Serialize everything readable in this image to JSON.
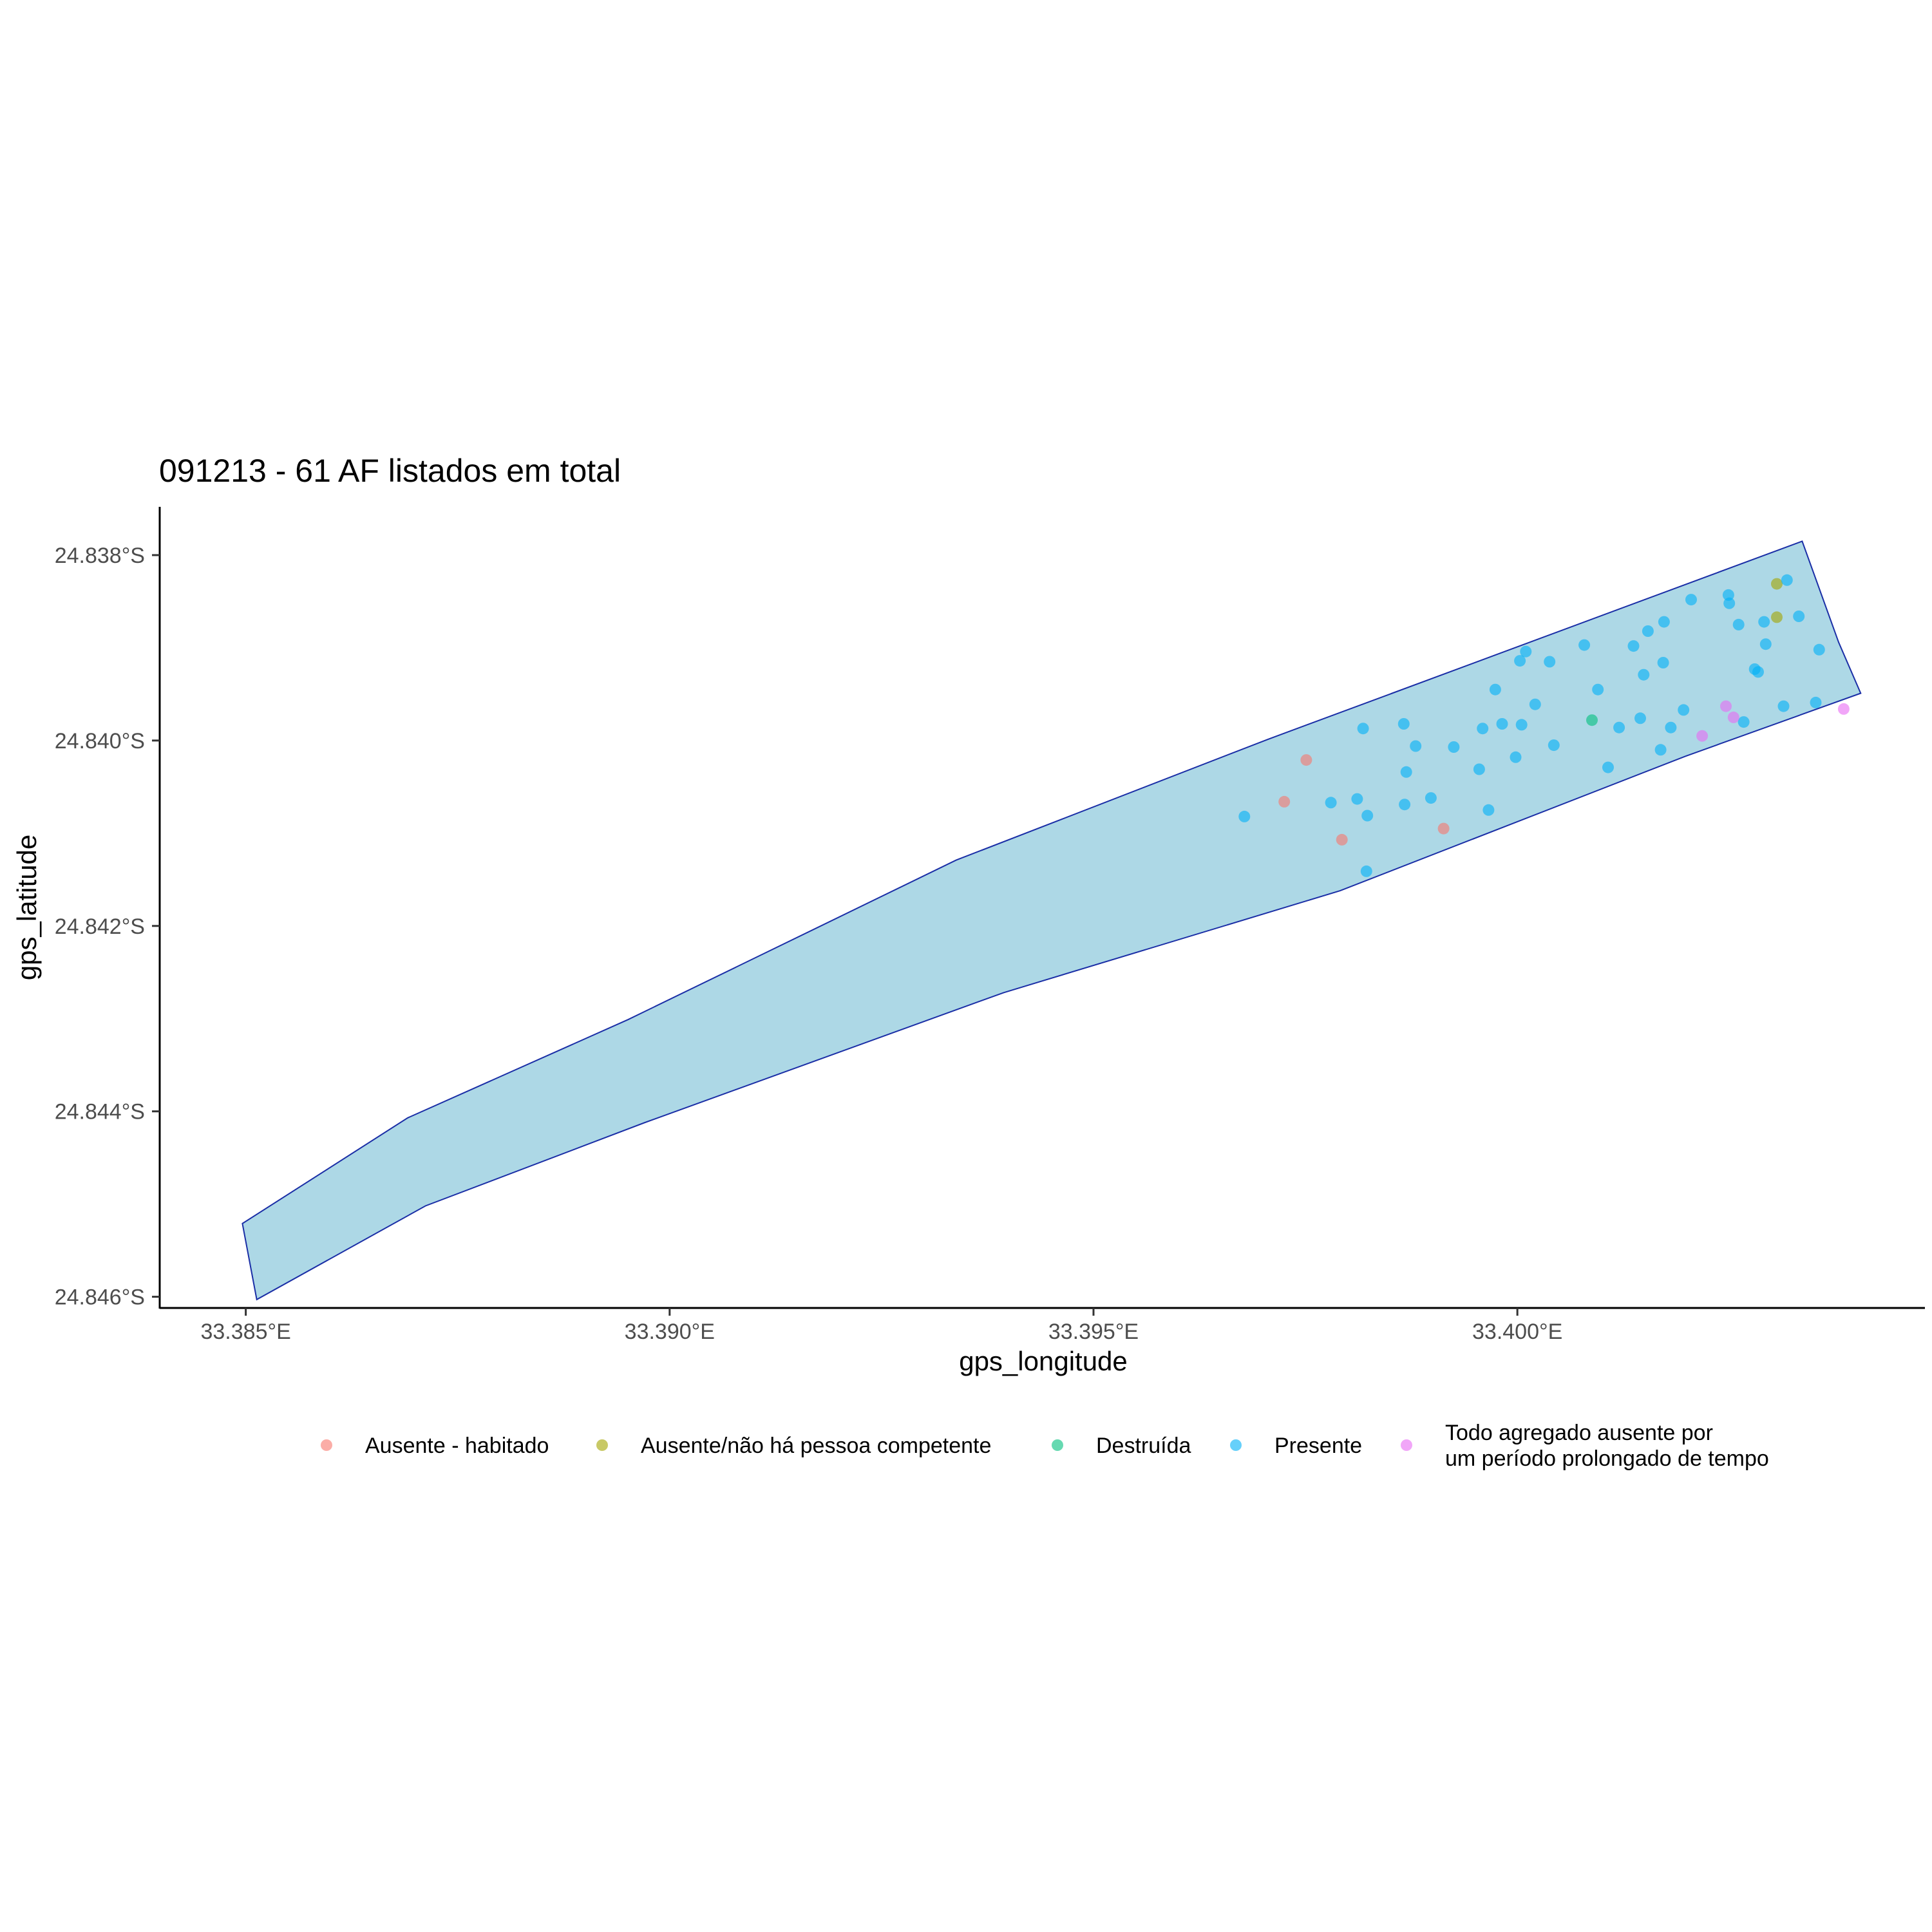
{
  "chart_data": {
    "type": "scatter",
    "title": "091213 - 61 AF listados em total",
    "xlabel": "gps_longitude",
    "ylabel": "gps_latitude",
    "xlim": [
      33.384,
      33.4048
    ],
    "ylim": [
      -24.8461,
      -24.8375
    ],
    "x_ticks": [
      {
        "value": 33.385,
        "label": "33.385°E"
      },
      {
        "value": 33.39,
        "label": "33.390°E"
      },
      {
        "value": 33.395,
        "label": "33.395°E"
      },
      {
        "value": 33.4,
        "label": "33.400°E"
      }
    ],
    "y_ticks": [
      {
        "value": -24.838,
        "label": "24.838°S"
      },
      {
        "value": -24.84,
        "label": "24.840°S"
      },
      {
        "value": -24.842,
        "label": "24.842°S"
      },
      {
        "value": -24.844,
        "label": "24.844°S"
      },
      {
        "value": -24.846,
        "label": "24.846°S"
      }
    ],
    "grid": false,
    "legend_position": "bottom",
    "boundary": {
      "fill": "#add8e6",
      "stroke": "#1a2ea6",
      "points": [
        [
          33.38496,
          -24.84521
        ],
        [
          33.38691,
          -24.84407
        ],
        [
          33.38951,
          -24.84301
        ],
        [
          33.39338,
          -24.84129
        ],
        [
          33.39705,
          -24.83999
        ],
        [
          33.40336,
          -24.83785
        ],
        [
          33.40379,
          -24.83894
        ],
        [
          33.40405,
          -24.83949
        ],
        [
          33.40198,
          -24.84017
        ],
        [
          33.39791,
          -24.84162
        ],
        [
          33.39394,
          -24.84272
        ],
        [
          33.38971,
          -24.84412
        ],
        [
          33.38712,
          -24.84502
        ],
        [
          33.38513,
          -24.84603
        ]
      ]
    },
    "series": [
      {
        "name": "Ausente - habitado",
        "color": "#f8766d",
        "points": [
          [
            33.39751,
            -24.84021
          ],
          [
            33.39725,
            -24.84066
          ],
          [
            33.39793,
            -24.84107
          ],
          [
            33.39913,
            -24.84095
          ]
        ]
      },
      {
        "name": "Ausente/não há pessoa competente",
        "color": "#a3a500",
        "points": [
          [
            33.40306,
            -24.83831
          ],
          [
            33.40306,
            -24.83867
          ]
        ]
      },
      {
        "name": "Destruída",
        "color": "#00bf7d",
        "points": [
          [
            33.40088,
            -24.83978
          ]
        ]
      },
      {
        "name": "Presente",
        "color": "#00b0f6",
        "points": [
          [
            33.40318,
            -24.83827
          ],
          [
            33.40249,
            -24.83843
          ],
          [
            33.40205,
            -24.83848
          ],
          [
            33.4025,
            -24.83852
          ],
          [
            33.40291,
            -24.83872
          ],
          [
            33.40332,
            -24.83866
          ],
          [
            33.40173,
            -24.83872
          ],
          [
            33.40154,
            -24.83882
          ],
          [
            33.40261,
            -24.83875
          ],
          [
            33.40079,
            -24.83897
          ],
          [
            33.40137,
            -24.83898
          ],
          [
            33.40293,
            -24.83896
          ],
          [
            33.4001,
            -24.83904
          ],
          [
            33.40003,
            -24.83914
          ],
          [
            33.40038,
            -24.83915
          ],
          [
            33.40172,
            -24.83916
          ],
          [
            33.40356,
            -24.83902
          ],
          [
            33.40149,
            -24.83929
          ],
          [
            33.4028,
            -24.83923
          ],
          [
            33.40284,
            -24.83926
          ],
          [
            33.39974,
            -24.83945
          ],
          [
            33.40095,
            -24.83945
          ],
          [
            33.40021,
            -24.83961
          ],
          [
            33.40314,
            -24.83963
          ],
          [
            33.40352,
            -24.83959
          ],
          [
            33.40196,
            -24.83967
          ],
          [
            33.40145,
            -24.83976
          ],
          [
            33.39982,
            -24.83982
          ],
          [
            33.39866,
            -24.83982
          ],
          [
            33.39818,
            -24.83987
          ],
          [
            33.39959,
            -24.83987
          ],
          [
            33.40005,
            -24.83983
          ],
          [
            33.4012,
            -24.83986
          ],
          [
            33.40181,
            -24.83986
          ],
          [
            33.40267,
            -24.8398
          ],
          [
            33.3988,
            -24.84006
          ],
          [
            33.39925,
            -24.84007
          ],
          [
            33.40043,
            -24.84005
          ],
          [
            33.40169,
            -24.8401
          ],
          [
            33.39998,
            -24.84018
          ],
          [
            33.39869,
            -24.84034
          ],
          [
            33.39955,
            -24.84031
          ],
          [
            33.40107,
            -24.84029
          ],
          [
            33.39811,
            -24.84063
          ],
          [
            33.3978,
            -24.84067
          ],
          [
            33.39867,
            -24.84069
          ],
          [
            33.39898,
            -24.84062
          ],
          [
            33.39966,
            -24.84075
          ],
          [
            33.39678,
            -24.84082
          ],
          [
            33.39823,
            -24.84081
          ],
          [
            33.39822,
            -24.84141
          ]
        ]
      },
      {
        "name": "Todo agregado ausente por um período prolongado de tempo",
        "color": "#e76bf3",
        "points": [
          [
            33.40246,
            -24.83963
          ],
          [
            33.40255,
            -24.83975
          ],
          [
            33.40218,
            -24.83995
          ],
          [
            33.40385,
            -24.83966
          ]
        ]
      }
    ],
    "legend": [
      {
        "label_lines": [
          "Ausente - habitado"
        ],
        "color": "#f8766d"
      },
      {
        "label_lines": [
          "Ausente/não há pessoa competente"
        ],
        "color": "#a3a500"
      },
      {
        "label_lines": [
          "Destruída"
        ],
        "color": "#00bf7d"
      },
      {
        "label_lines": [
          "Presente"
        ],
        "color": "#00b0f6"
      },
      {
        "label_lines": [
          "Todo agregado ausente por",
          "um período prolongado de tempo"
        ],
        "color": "#e76bf3"
      }
    ]
  }
}
